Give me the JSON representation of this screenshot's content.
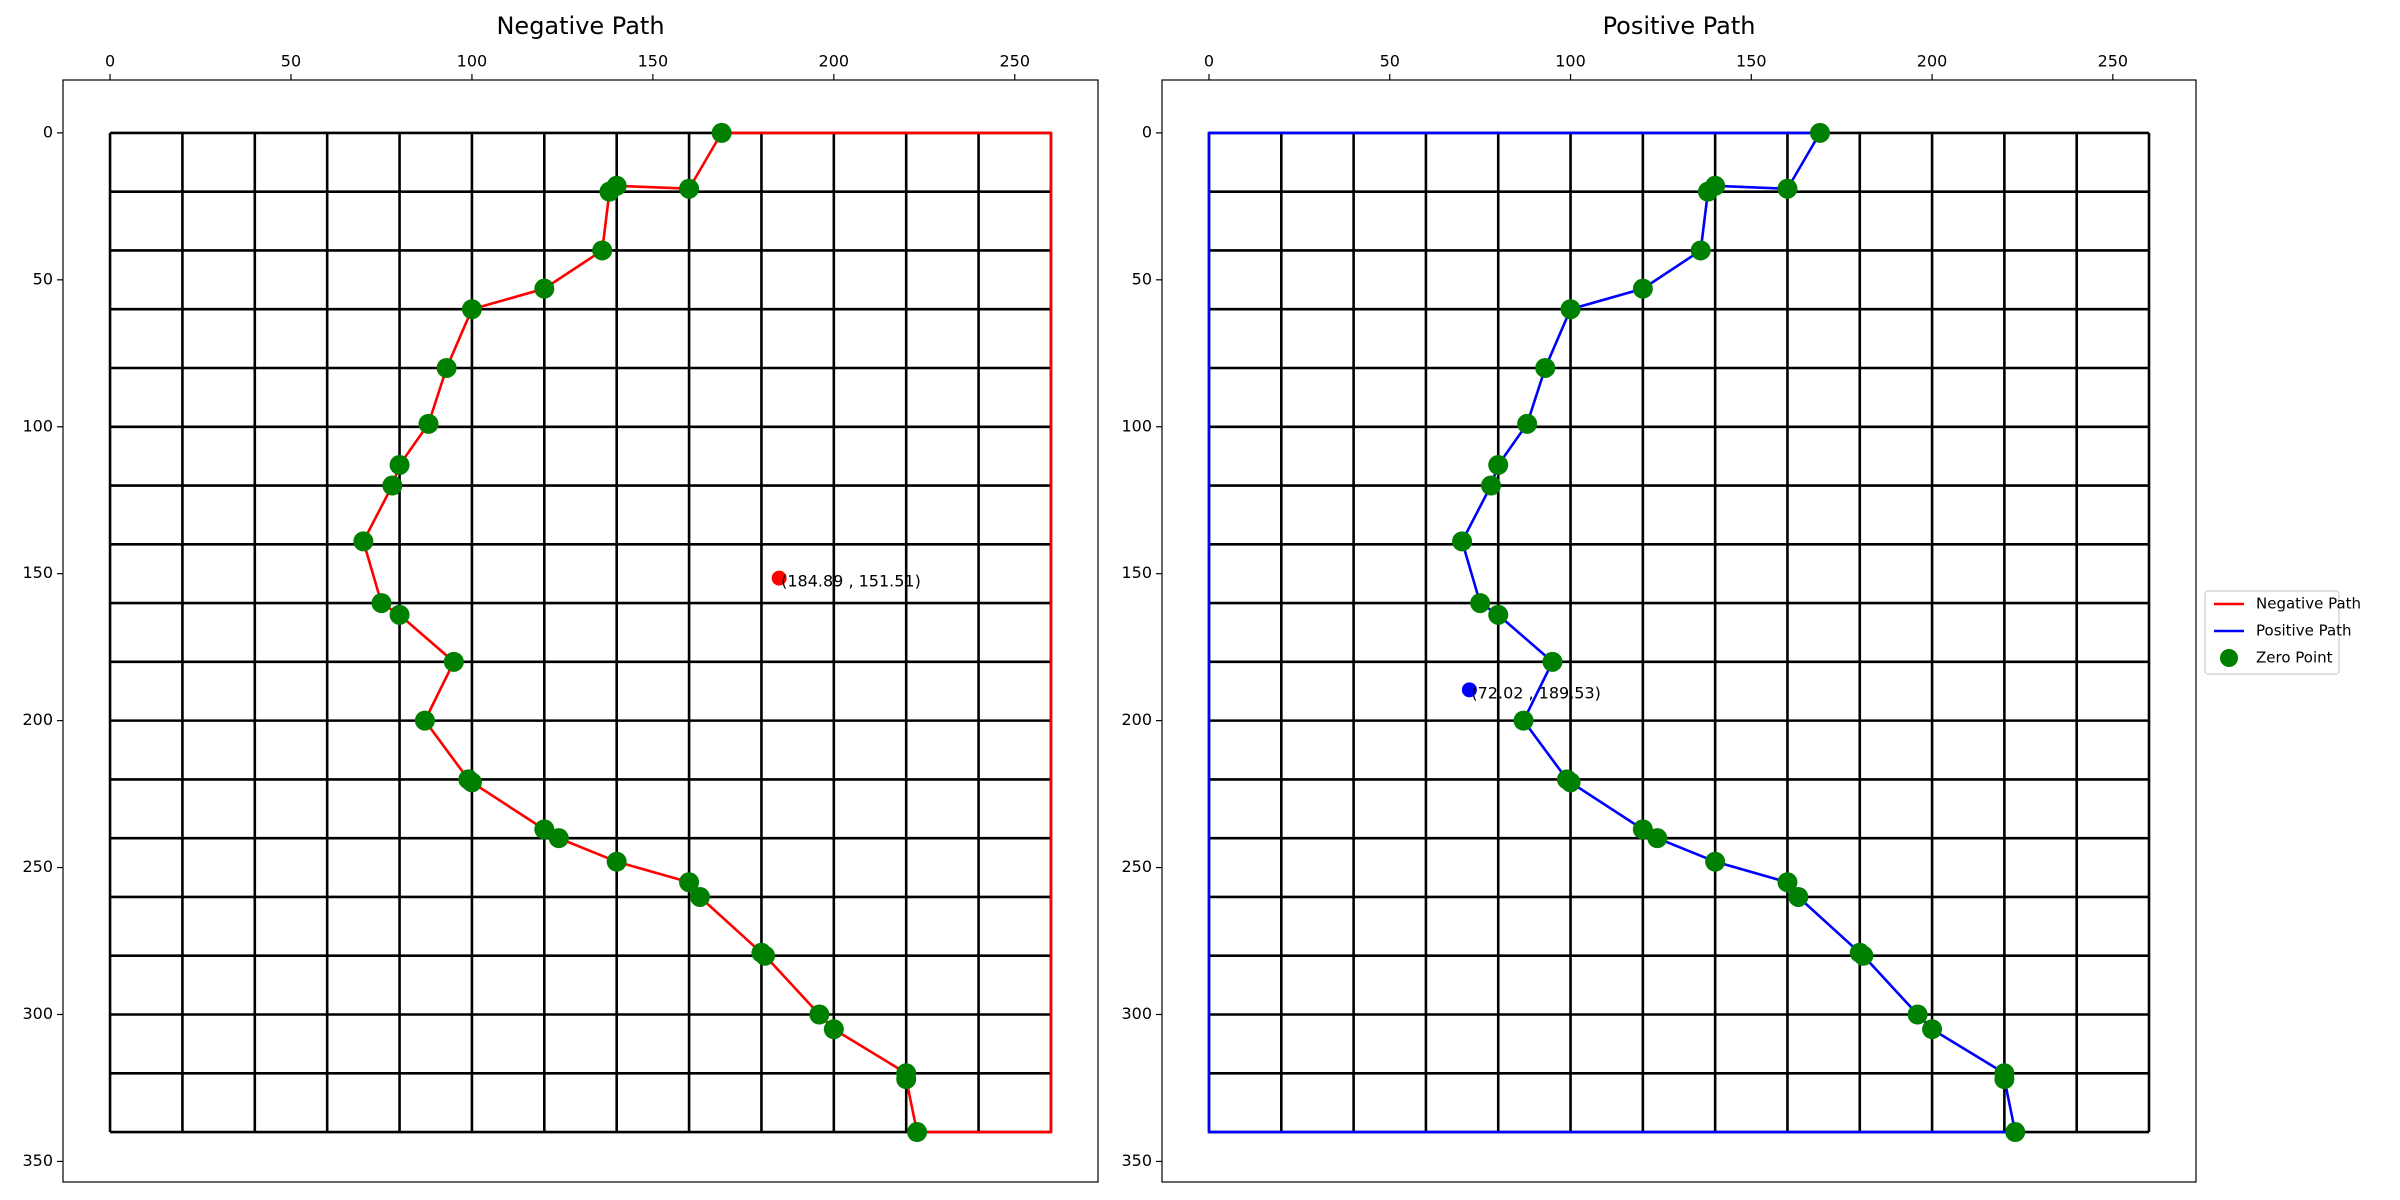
{
  "chart_data": [
    {
      "type": "line",
      "title": "Negative Path",
      "xlim": [
        -13,
        273
      ],
      "ylim": [
        -18,
        357
      ],
      "y_inverted": true,
      "x_axis_position": "top",
      "xticks": [
        0,
        50,
        100,
        150,
        200,
        250
      ],
      "yticks": [
        0,
        50,
        100,
        150,
        200,
        250,
        300,
        350
      ],
      "grid_x": [
        0,
        20,
        40,
        60,
        80,
        100,
        120,
        140,
        160,
        180,
        200,
        220,
        240,
        260
      ],
      "grid_y": [
        0,
        20,
        40,
        60,
        80,
        100,
        120,
        140,
        160,
        180,
        200,
        220,
        240,
        260,
        280,
        300,
        320,
        340
      ],
      "grid_color": "#000000",
      "series": [
        {
          "name": "Negative Path",
          "color": "#ff0000",
          "x": [
            169,
            160,
            140,
            138,
            136,
            120,
            100,
            93,
            88,
            80,
            78,
            70,
            75,
            80,
            95,
            87,
            99,
            100,
            120,
            124,
            140,
            160,
            163,
            180,
            181,
            196,
            200,
            220,
            220,
            223,
            260,
            260,
            169
          ],
          "y": [
            0,
            19,
            18,
            20,
            40,
            53,
            60,
            80,
            99,
            113,
            120,
            139,
            160,
            164,
            180,
            200,
            220,
            221,
            237,
            240,
            248,
            255,
            260,
            279,
            280,
            300,
            305,
            320,
            322,
            340,
            340,
            0,
            0
          ]
        },
        {
          "name": "Zero Point",
          "color": "#008000",
          "type": "scatter",
          "x": [
            169,
            160,
            140,
            138,
            136,
            120,
            100,
            93,
            88,
            80,
            78,
            70,
            75,
            80,
            95,
            87,
            99,
            100,
            120,
            124,
            140,
            160,
            163,
            180,
            181,
            196,
            200,
            220,
            220,
            223
          ],
          "y": [
            0,
            19,
            18,
            20,
            40,
            53,
            60,
            80,
            99,
            113,
            120,
            139,
            160,
            164,
            180,
            200,
            220,
            221,
            237,
            240,
            248,
            255,
            260,
            279,
            280,
            300,
            305,
            320,
            322,
            340
          ]
        }
      ],
      "marker": {
        "x": 184.89,
        "y": 151.51,
        "label": "(184.89 , 151.51)",
        "color": "#ff0000"
      }
    },
    {
      "type": "line",
      "title": "Positive Path",
      "xlim": [
        -13,
        273
      ],
      "ylim": [
        -18,
        357
      ],
      "y_inverted": true,
      "x_axis_position": "top",
      "xticks": [
        0,
        50,
        100,
        150,
        200,
        250
      ],
      "yticks": [
        0,
        50,
        100,
        150,
        200,
        250,
        300,
        350
      ],
      "grid_x": [
        0,
        20,
        40,
        60,
        80,
        100,
        120,
        140,
        160,
        180,
        200,
        220,
        240,
        260
      ],
      "grid_y": [
        0,
        20,
        40,
        60,
        80,
        100,
        120,
        140,
        160,
        180,
        200,
        220,
        240,
        260,
        280,
        300,
        320,
        340
      ],
      "grid_color": "#000000",
      "series": [
        {
          "name": "Positive Path",
          "color": "#0000ff",
          "x": [
            169,
            160,
            140,
            138,
            136,
            120,
            100,
            93,
            88,
            80,
            78,
            70,
            75,
            80,
            95,
            87,
            99,
            100,
            120,
            124,
            140,
            160,
            163,
            180,
            181,
            196,
            200,
            220,
            220,
            223,
            0,
            0,
            169
          ],
          "y": [
            0,
            19,
            18,
            20,
            40,
            53,
            60,
            80,
            99,
            113,
            120,
            139,
            160,
            164,
            180,
            200,
            220,
            221,
            237,
            240,
            248,
            255,
            260,
            279,
            280,
            300,
            305,
            320,
            322,
            340,
            340,
            0,
            0
          ]
        },
        {
          "name": "Zero Point",
          "color": "#008000",
          "type": "scatter",
          "x": [
            169,
            160,
            140,
            138,
            136,
            120,
            100,
            93,
            88,
            80,
            78,
            70,
            75,
            80,
            95,
            87,
            99,
            100,
            120,
            124,
            140,
            160,
            163,
            180,
            181,
            196,
            200,
            220,
            220,
            223
          ],
          "y": [
            0,
            19,
            18,
            20,
            40,
            53,
            60,
            80,
            99,
            113,
            120,
            139,
            160,
            164,
            180,
            200,
            220,
            221,
            237,
            240,
            248,
            255,
            260,
            279,
            280,
            300,
            305,
            320,
            322,
            340
          ]
        }
      ],
      "marker": {
        "x": 72.02,
        "y": 189.53,
        "label": "(72.02 , 189.53)",
        "color": "#0000ff"
      }
    }
  ]
}
